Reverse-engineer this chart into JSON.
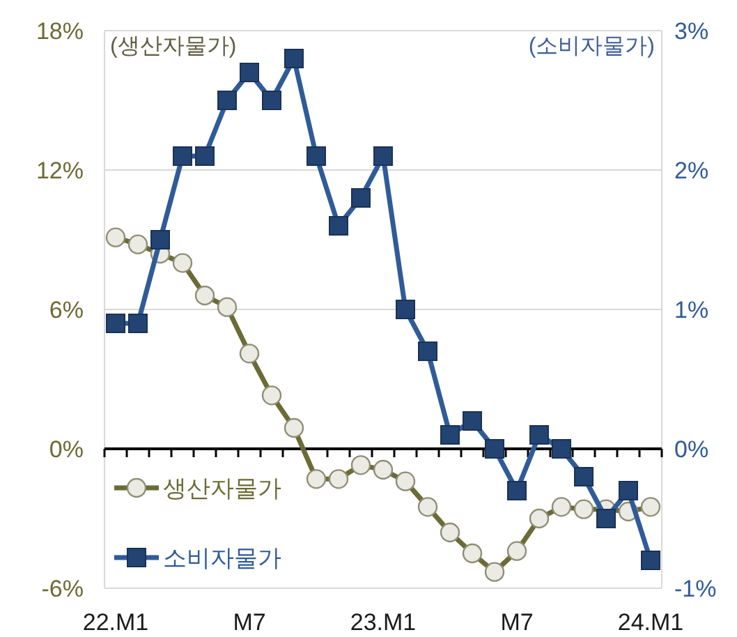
{
  "chart_data": {
    "type": "line",
    "categories": [
      "22.M1",
      null,
      null,
      null,
      null,
      null,
      "M7",
      null,
      null,
      null,
      null,
      null,
      "23.M1",
      null,
      null,
      null,
      null,
      null,
      "M7",
      null,
      null,
      null,
      null,
      null,
      "24.M1"
    ],
    "series": [
      {
        "name": "생산자물가",
        "color": "#6b6b35",
        "marker": "circle",
        "values": [
          9.1,
          8.8,
          8.4,
          8.0,
          6.6,
          6.1,
          4.1,
          2.3,
          0.9,
          -1.3,
          -1.3,
          -0.7,
          -0.9,
          -1.4,
          -2.5,
          -3.6,
          -4.5,
          -5.3,
          -4.4,
          -3.0,
          -2.5,
          -2.6,
          -2.6,
          -2.7,
          -2.5
        ]
      },
      {
        "name": "소비자물가",
        "color": "#2f5b98",
        "marker": "square",
        "axis": "y2",
        "values": [
          0.9,
          0.9,
          1.5,
          2.1,
          2.1,
          2.5,
          2.7,
          2.5,
          2.8,
          2.1,
          1.6,
          1.8,
          2.1,
          1.0,
          0.7,
          0.1,
          0.2,
          0.0,
          -0.3,
          0.1,
          0.0,
          -0.2,
          -0.5,
          -0.3,
          -0.8
        ]
      }
    ],
    "ylabel": "(생산자물가)",
    "y2label": "(소비자물가)",
    "ylim": [
      -6,
      18
    ],
    "yticks": [
      {
        "value": -6,
        "label": "-6%"
      },
      {
        "value": 0,
        "label": "0%"
      },
      {
        "value": 6,
        "label": "6%"
      },
      {
        "value": 12,
        "label": "12%"
      },
      {
        "value": 18,
        "label": "18%"
      }
    ],
    "y2lim": [
      -1,
      3
    ],
    "y2ticks": [
      {
        "value": -1,
        "label": "-1%"
      },
      {
        "value": 0,
        "label": "0%"
      },
      {
        "value": 1,
        "label": "1%"
      },
      {
        "value": 2,
        "label": "2%"
      },
      {
        "value": 3,
        "label": "3%"
      }
    ],
    "grid": "y",
    "legend": "bottom left"
  }
}
